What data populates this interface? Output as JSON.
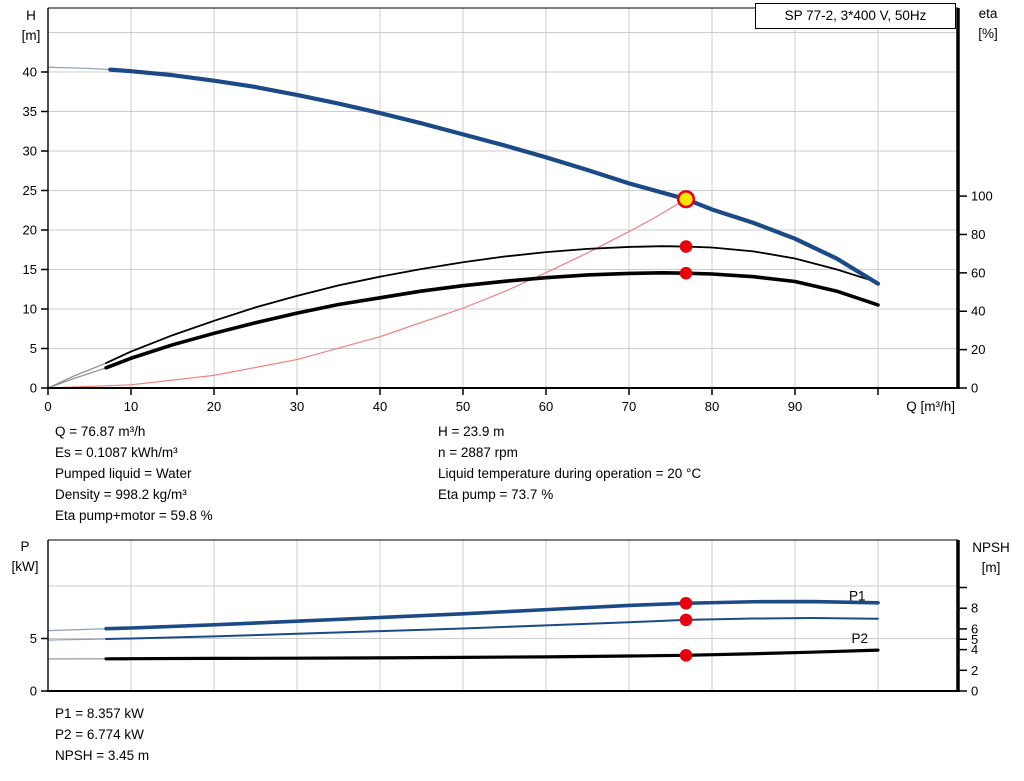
{
  "header": {
    "pump_label": "SP 77-2, 3*400 V, 50Hz"
  },
  "colors": {
    "curve_blue": "#1c4a87",
    "curve_black": "#000000",
    "marker_red": "#e8000d",
    "duty_yellow": "#ffe600",
    "system_red": "#f08080",
    "grid": "#cccccc",
    "axis": "#000000",
    "lead_gray": "#8c8c8c",
    "lead_blue": "#8ba0bd",
    "annotation_blue": "#1c4a87",
    "background": "#ffffff"
  },
  "info": {
    "left": [
      "Q = 76.87 m³/h",
      "Es = 0.1087 kWh/m³",
      "Pumped liquid = Water",
      "Density = 998.2 kg/m³",
      "Eta pump+motor = 59.8 %"
    ],
    "right": [
      "H = 23.9 m",
      "n = 2887 rpm",
      "Liquid temperature during operation = 20 °C",
      "Eta pump = 73.7 %"
    ]
  },
  "results": [
    "P1 = 8.357 kW",
    "P2 = 6.774 kW",
    "NPSH = 3.45 m"
  ],
  "chart_data": [
    {
      "id": "head-efficiency-chart",
      "type": "line",
      "title": "SP 77-2, 3*400 V, 50Hz",
      "x_axis": {
        "label": "Q [m³/h]",
        "min": 0,
        "max": 109.64,
        "labeled_ticks": [
          0,
          10,
          20,
          30,
          40,
          50,
          60,
          70,
          80,
          90
        ],
        "unlabeled_ticks": [
          100
        ],
        "gridlines": [
          10,
          20,
          30,
          40,
          50,
          60,
          70,
          80,
          90,
          100
        ]
      },
      "y_left": {
        "label": [
          "H",
          "[m]"
        ],
        "min": 0,
        "max": 48.1,
        "ticks": [
          0,
          5,
          10,
          15,
          20,
          25,
          30,
          35,
          40
        ],
        "unlabeled_ticks": [],
        "gridlines": [
          5,
          10,
          15,
          20,
          25,
          30,
          35,
          40,
          45
        ]
      },
      "y_right": {
        "label": [
          "eta",
          "[%]"
        ],
        "min": 0,
        "max": 198,
        "ticks": [
          0,
          20,
          40,
          60,
          80,
          100
        ],
        "unlabeled_ticks": [],
        "gridlines": []
      },
      "series": [
        {
          "name": "system-curve",
          "axis": "left",
          "color_key": "system_red",
          "width": 1.2,
          "points": [
            [
              0,
              0
            ],
            [
              10,
              0.4
            ],
            [
              20,
              1.6
            ],
            [
              30,
              3.6
            ],
            [
              40,
              6.5
            ],
            [
              50,
              10.1
            ],
            [
              55,
              12.2
            ],
            [
              60,
              14.6
            ],
            [
              65,
              17.1
            ],
            [
              70,
              19.8
            ],
            [
              73,
              21.5
            ],
            [
              76.87,
              23.9
            ]
          ]
        },
        {
          "name": "eta-pump-curve",
          "axis": "right",
          "color_key": "curve_black",
          "width": 1.8,
          "lead_q": 7,
          "lead_color_key": "lead_gray",
          "points": [
            [
              0,
              0
            ],
            [
              3,
              6
            ],
            [
              7,
              13
            ],
            [
              10,
              19
            ],
            [
              15,
              27.5
            ],
            [
              20,
              35
            ],
            [
              25,
              42
            ],
            [
              30,
              48
            ],
            [
              35,
              53.5
            ],
            [
              40,
              58
            ],
            [
              45,
              62
            ],
            [
              50,
              65.5
            ],
            [
              55,
              68.5
            ],
            [
              60,
              70.8
            ],
            [
              65,
              72.5
            ],
            [
              70,
              73.5
            ],
            [
              74,
              73.9
            ],
            [
              76.87,
              73.7
            ],
            [
              80,
              73.2
            ],
            [
              85,
              71.2
            ],
            [
              90,
              67.5
            ],
            [
              95,
              61.8
            ],
            [
              100,
              55
            ]
          ]
        },
        {
          "name": "eta-pump-motor-curve",
          "axis": "right",
          "color_key": "curve_black",
          "width": 3.6,
          "lead_q": 7,
          "lead_color_key": "lead_gray",
          "points": [
            [
              0,
              0
            ],
            [
              3,
              4.8
            ],
            [
              7,
              10.5
            ],
            [
              10,
              15.5
            ],
            [
              15,
              22.5
            ],
            [
              20,
              28.5
            ],
            [
              25,
              34
            ],
            [
              30,
              39
            ],
            [
              35,
              43.5
            ],
            [
              40,
              47
            ],
            [
              45,
              50.5
            ],
            [
              50,
              53.3
            ],
            [
              55,
              55.6
            ],
            [
              60,
              57.5
            ],
            [
              65,
              58.9
            ],
            [
              70,
              59.7
            ],
            [
              74,
              60
            ],
            [
              76.87,
              59.8
            ],
            [
              80,
              59.4
            ],
            [
              85,
              58
            ],
            [
              90,
              55.5
            ],
            [
              95,
              50.5
            ],
            [
              100,
              43.3
            ]
          ]
        },
        {
          "name": "head-curve",
          "axis": "left",
          "color_key": "curve_blue",
          "width": 4.2,
          "lead_q": 7.5,
          "lead_color_key": "lead_blue",
          "points": [
            [
              0,
              40.6
            ],
            [
              5,
              40.45
            ],
            [
              7.5,
              40.3
            ],
            [
              10,
              40.1
            ],
            [
              15,
              39.6
            ],
            [
              20,
              38.9
            ],
            [
              25,
              38.1
            ],
            [
              30,
              37.1
            ],
            [
              35,
              36.0
            ],
            [
              40,
              34.8
            ],
            [
              45,
              33.5
            ],
            [
              50,
              32.1
            ],
            [
              55,
              30.7
            ],
            [
              60,
              29.2
            ],
            [
              65,
              27.6
            ],
            [
              70,
              25.9
            ],
            [
              76.87,
              23.9
            ],
            [
              80,
              22.6
            ],
            [
              85,
              20.9
            ],
            [
              90,
              18.9
            ],
            [
              95,
              16.4
            ],
            [
              100,
              13.2
            ]
          ]
        }
      ],
      "markers": [
        {
          "name": "eta-pump-point",
          "axis": "right",
          "q": 76.87,
          "v": 73.7,
          "style": "dot"
        },
        {
          "name": "eta-pump-motor-point",
          "axis": "right",
          "q": 76.87,
          "v": 59.8,
          "style": "dot"
        },
        {
          "name": "duty-point",
          "axis": "left",
          "q": 76.87,
          "v": 23.9,
          "style": "duty"
        }
      ],
      "annotations": []
    },
    {
      "id": "power-npsh-chart",
      "type": "line",
      "title": "",
      "x_axis": {
        "label": "",
        "min": 0,
        "max": 109.64,
        "labeled_ticks": [],
        "unlabeled_ticks": [],
        "gridlines": [
          10,
          20,
          30,
          40,
          50,
          60,
          70,
          80,
          90,
          100
        ]
      },
      "y_left": {
        "label": [
          "P",
          "[kW]"
        ],
        "min": 0,
        "max": 14.38,
        "ticks": [
          0,
          5
        ],
        "unlabeled_ticks": [],
        "gridlines": [
          5,
          10
        ]
      },
      "y_right": {
        "label": [
          "NPSH",
          "[m]"
        ],
        "min": 0,
        "max": 14.59,
        "ticks": [
          0,
          2,
          4,
          5,
          6,
          8
        ],
        "unlabeled_ticks": [
          10
        ],
        "gridlines": []
      },
      "series": [
        {
          "name": "npsh-curve",
          "axis": "right",
          "color_key": "curve_black",
          "width": 3.2,
          "lead_q": 7,
          "lead_color_key": "lead_gray",
          "points": [
            [
              0,
              3.1
            ],
            [
              7,
              3.11
            ],
            [
              10,
              3.12
            ],
            [
              20,
              3.15
            ],
            [
              30,
              3.17
            ],
            [
              40,
              3.2
            ],
            [
              50,
              3.25
            ],
            [
              60,
              3.3
            ],
            [
              70,
              3.38
            ],
            [
              76.87,
              3.45
            ],
            [
              85,
              3.6
            ],
            [
              92,
              3.75
            ],
            [
              100,
              3.95
            ]
          ]
        },
        {
          "name": "p2-curve",
          "axis": "left",
          "color_key": "curve_blue",
          "width": 2,
          "lead_q": 7,
          "lead_color_key": "lead_blue",
          "points": [
            [
              0,
              4.85
            ],
            [
              7,
              4.95
            ],
            [
              10,
              5.0
            ],
            [
              20,
              5.2
            ],
            [
              30,
              5.45
            ],
            [
              40,
              5.7
            ],
            [
              50,
              5.95
            ],
            [
              60,
              6.25
            ],
            [
              70,
              6.55
            ],
            [
              76.87,
              6.774
            ],
            [
              85,
              6.9
            ],
            [
              92,
              6.95
            ],
            [
              100,
              6.88
            ]
          ]
        },
        {
          "name": "p1-curve",
          "axis": "left",
          "color_key": "curve_blue",
          "width": 3.6,
          "lead_q": 7,
          "lead_color_key": "lead_blue",
          "points": [
            [
              0,
              5.75
            ],
            [
              7,
              5.93
            ],
            [
              10,
              6.0
            ],
            [
              20,
              6.3
            ],
            [
              30,
              6.65
            ],
            [
              40,
              7.0
            ],
            [
              50,
              7.35
            ],
            [
              60,
              7.75
            ],
            [
              70,
              8.15
            ],
            [
              76.87,
              8.357
            ],
            [
              85,
              8.5
            ],
            [
              92,
              8.52
            ],
            [
              100,
              8.4
            ]
          ]
        }
      ],
      "markers": [
        {
          "name": "p1-point",
          "axis": "left",
          "q": 76.87,
          "v": 8.357,
          "style": "dot"
        },
        {
          "name": "p2-point",
          "axis": "left",
          "q": 76.87,
          "v": 6.774,
          "style": "dot"
        },
        {
          "name": "npsh-point",
          "axis": "right",
          "q": 76.87,
          "v": 3.45,
          "style": "dot"
        }
      ],
      "annotations": [
        {
          "name": "p1-curve-label",
          "text": "P1",
          "axis": "left",
          "q": 97.5,
          "v": 8.6
        },
        {
          "name": "p2-curve-label",
          "text": "P2",
          "axis": "left",
          "q": 97.8,
          "v": 4.57
        }
      ]
    }
  ]
}
